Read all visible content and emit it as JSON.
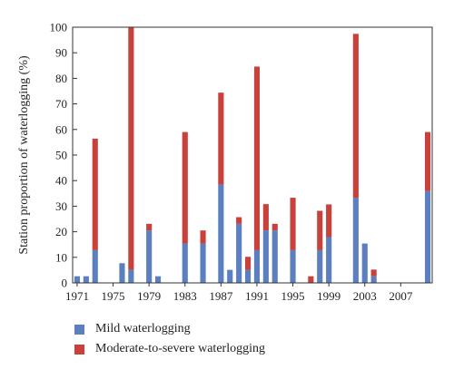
{
  "chart_data": {
    "type": "bar",
    "stacked": true,
    "ylabel": "Station proportion of waterlogging (%)",
    "xlabel": "",
    "ylim": [
      0,
      100
    ],
    "yticks": [
      0,
      10,
      20,
      30,
      40,
      50,
      60,
      70,
      80,
      90,
      100
    ],
    "xlim": [
      1970.5,
      2010.5
    ],
    "xticks": [
      1971,
      1975,
      1979,
      1983,
      1987,
      1991,
      1995,
      1999,
      2003,
      2007
    ],
    "x": [
      1971,
      1972,
      1973,
      1976,
      1977,
      1978,
      1979,
      1980,
      1983,
      1985,
      1987,
      1988,
      1989,
      1990,
      1991,
      1992,
      1993,
      1995,
      1997,
      1998,
      1999,
      2002,
      2003,
      2004,
      2010
    ],
    "series": [
      {
        "name": "Mild waterlogging",
        "color": "#5b7fbf",
        "values": [
          2.6,
          2.6,
          12.8,
          7.7,
          5.1,
          0,
          20.5,
          2.6,
          15.4,
          15.4,
          38.5,
          5.1,
          23.1,
          5.1,
          12.8,
          20.5,
          20.5,
          12.8,
          0,
          12.8,
          17.9,
          33.3,
          15.4,
          2.6,
          35.9
        ]
      },
      {
        "name": "Moderate-to-severe waterlogging",
        "color": "#c8413b",
        "values": [
          0,
          0,
          43.6,
          0,
          94.9,
          0,
          2.6,
          0,
          43.6,
          5.1,
          35.9,
          0,
          2.6,
          5.1,
          71.8,
          10.3,
          2.6,
          20.5,
          2.6,
          15.4,
          12.8,
          64.1,
          0,
          2.6,
          23.1
        ]
      }
    ],
    "legend_position": "bottom",
    "grid": false
  },
  "legend": {
    "items": [
      {
        "label": "Mild waterlogging",
        "color": "#5b7fbf"
      },
      {
        "label": "Moderate-to-severe waterlogging",
        "color": "#c8413b"
      }
    ]
  }
}
